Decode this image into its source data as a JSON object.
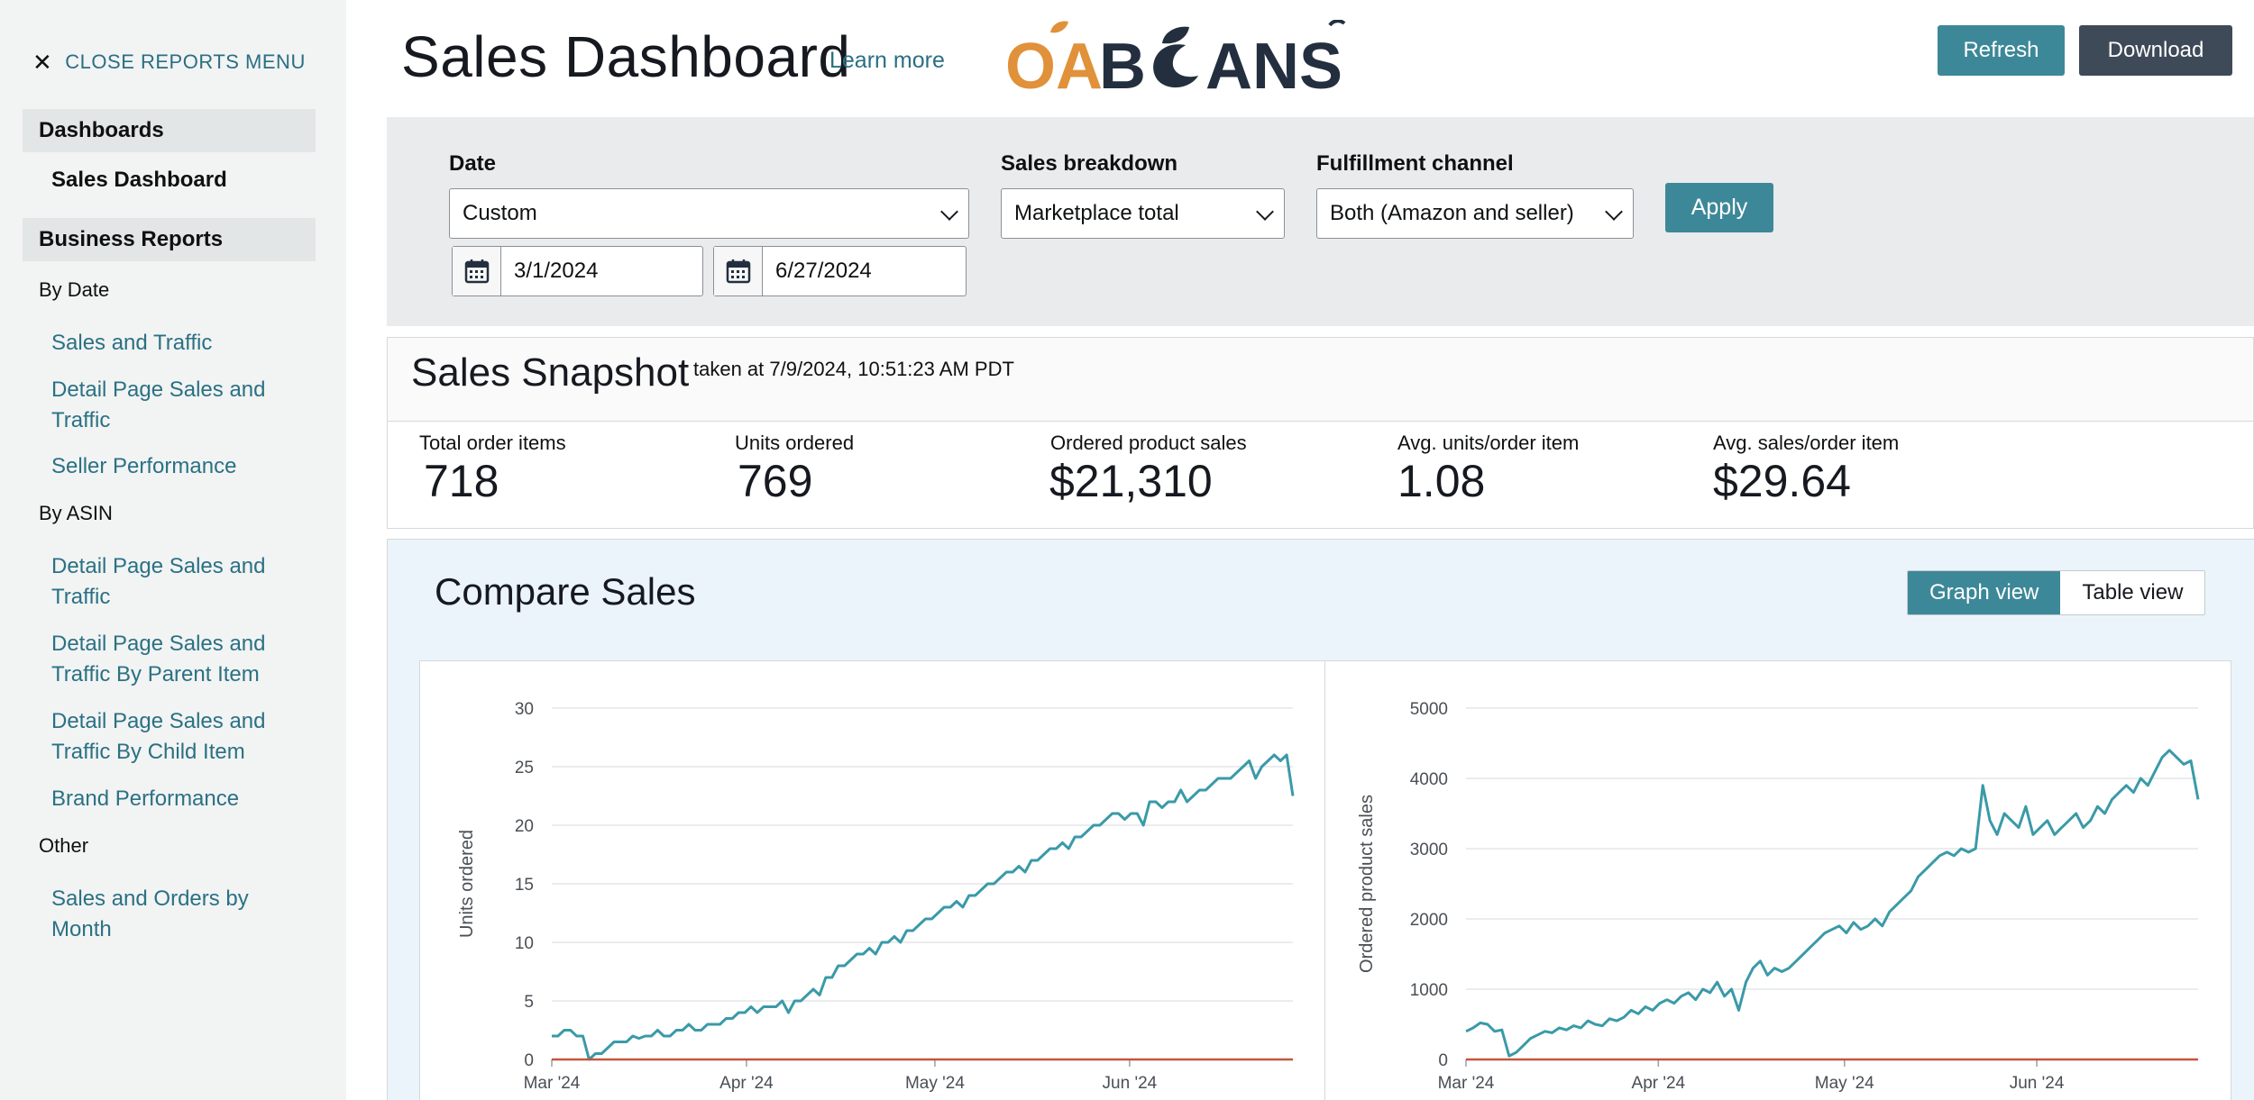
{
  "sidebar": {
    "close_label": "CLOSE REPORTS MENU",
    "sections": {
      "dashboards": {
        "title": "Dashboards",
        "active_item": "Sales Dashboard"
      },
      "business_reports": {
        "title": "Business Reports"
      }
    },
    "groups": {
      "by_date": "By Date",
      "by_asin": "By ASIN",
      "other": "Other"
    },
    "links": {
      "sales_and_traffic": "Sales and Traffic",
      "detail_page_sales_traffic_date": "Detail Page Sales and Traffic",
      "seller_performance": "Seller Performance",
      "detail_page_sales_traffic_asin": "Detail Page Sales and Traffic",
      "detail_page_parent": "Detail Page Sales and Traffic By Parent Item",
      "detail_page_child": "Detail Page Sales and Traffic By Child Item",
      "brand_performance": "Brand Performance",
      "sales_orders_month": "Sales and Orders by Month"
    }
  },
  "header": {
    "title": "Sales Dashboard",
    "learn_more": "Learn more",
    "logo": {
      "part1": "OA",
      "part2": "B",
      "part3": "ANS"
    },
    "refresh_label": "Refresh",
    "download_label": "Download"
  },
  "filters": {
    "date_label": "Date",
    "date_value": "Custom",
    "start_date": "3/1/2024",
    "end_date": "6/27/2024",
    "breakdown_label": "Sales breakdown",
    "breakdown_value": "Marketplace total",
    "fulfillment_label": "Fulfillment channel",
    "fulfillment_value": "Both (Amazon and seller)",
    "apply_label": "Apply"
  },
  "snapshot": {
    "title": "Sales Snapshot",
    "taken_at": "taken at 7/9/2024, 10:51:23 AM PDT",
    "metrics": [
      {
        "label": "Total order items",
        "value": "718"
      },
      {
        "label": "Units ordered",
        "value": "769"
      },
      {
        "label": "Ordered product sales",
        "value": "$21,310"
      },
      {
        "label": "Avg. units/order item",
        "value": "1.08"
      },
      {
        "label": "Avg. sales/order item",
        "value": "$29.64"
      }
    ]
  },
  "compare": {
    "title": "Compare Sales",
    "graph_view": "Graph view",
    "table_view": "Table view"
  },
  "colors": {
    "accent": "#3d8898",
    "line": "#3a9aa8",
    "baseline": "#c0583c",
    "logo_orange": "#e0913a",
    "logo_dark": "#232f3e"
  },
  "chart_data": [
    {
      "type": "line",
      "ylabel": "Units ordered",
      "x_ticks": [
        "Mar '24",
        "Apr '24",
        "May '24",
        "Jun '24"
      ],
      "x_tick_days": [
        0,
        31,
        61,
        92
      ],
      "x_range": [
        0,
        118
      ],
      "y_ticks": [
        0,
        5,
        10,
        15,
        20,
        25,
        30
      ],
      "ylim": [
        0,
        30
      ],
      "series": [
        {
          "values": [
            2,
            2,
            2.5,
            2.5,
            2,
            2,
            0,
            0.5,
            0.5,
            1,
            1.5,
            1.5,
            1.5,
            2,
            1.8,
            2,
            2,
            2.5,
            2,
            2,
            2.5,
            2.5,
            3,
            2.5,
            2.5,
            3,
            3,
            3,
            3.5,
            3.5,
            4,
            4,
            4.5,
            4,
            4.5,
            4.5,
            4.5,
            5,
            4,
            5,
            5,
            5.5,
            6,
            5.5,
            7,
            7,
            8,
            8,
            8.5,
            9,
            9,
            9.5,
            9,
            10,
            10,
            10.5,
            10,
            11,
            11,
            11.5,
            12,
            12,
            12.5,
            13,
            13,
            13.5,
            13,
            14,
            14,
            14.5,
            15,
            15,
            15.5,
            16,
            16,
            16.5,
            16,
            17,
            17,
            17.5,
            18,
            18,
            18.5,
            18,
            19,
            19,
            19.5,
            20,
            20,
            20.5,
            21,
            21,
            20.5,
            21,
            21,
            20,
            22,
            22,
            21.5,
            22,
            22,
            23,
            22,
            22.5,
            23,
            23,
            23.5,
            24,
            24,
            24,
            24.5,
            25,
            25.5,
            24,
            25,
            25.5,
            26,
            25.5,
            26,
            22.5
          ]
        },
        {
          "values": [
            0,
            0,
            0,
            0,
            0,
            0,
            0,
            0,
            0,
            0,
            0,
            0,
            0,
            0,
            0,
            0,
            0,
            0,
            0,
            0,
            0,
            0,
            0,
            0,
            0,
            0,
            0,
            0,
            0,
            0,
            0,
            0,
            0,
            0,
            0,
            0,
            0,
            0,
            0,
            0,
            0,
            0,
            0,
            0,
            0,
            0,
            0,
            0,
            0,
            0,
            0,
            0,
            0,
            0,
            0,
            0,
            0,
            0,
            0,
            0,
            0,
            0,
            0,
            0,
            0,
            0,
            0,
            0,
            0,
            0,
            0,
            0,
            0,
            0,
            0,
            0,
            0,
            0,
            0,
            0,
            0,
            0,
            0,
            0,
            0,
            0,
            0,
            0,
            0,
            0,
            0,
            0,
            0,
            0,
            0,
            0,
            0,
            0,
            0,
            0,
            0,
            0,
            0,
            0,
            0,
            0,
            0,
            0,
            0,
            0,
            0,
            0,
            0,
            0,
            0,
            0,
            0,
            0,
            0
          ]
        }
      ]
    },
    {
      "type": "line",
      "ylabel": "Ordered product sales",
      "x_ticks": [
        "Mar '24",
        "Apr '24",
        "May '24",
        "Jun '24"
      ],
      "x_tick_days": [
        0,
        31,
        61,
        92
      ],
      "x_range": [
        0,
        118
      ],
      "y_ticks": [
        0,
        1000,
        2000,
        3000,
        4000,
        5000
      ],
      "ylim": [
        0,
        5000
      ],
      "series": [
        {
          "values": [
            400,
            450,
            520,
            500,
            400,
            420,
            50,
            100,
            200,
            300,
            350,
            400,
            380,
            450,
            420,
            480,
            450,
            550,
            500,
            480,
            580,
            550,
            600,
            700,
            650,
            750,
            700,
            800,
            850,
            800,
            900,
            950,
            850,
            1000,
            950,
            1100,
            900,
            1000,
            700,
            1100,
            1300,
            1400,
            1200,
            1300,
            1250,
            1300,
            1400,
            1500,
            1600,
            1700,
            1800,
            1850,
            1900,
            1800,
            1950,
            1850,
            1900,
            2000,
            1900,
            2100,
            2200,
            2300,
            2400,
            2600,
            2700,
            2800,
            2900,
            2950,
            2900,
            3000,
            2950,
            3000,
            3900,
            3400,
            3200,
            3500,
            3400,
            3300,
            3600,
            3200,
            3300,
            3400,
            3200,
            3300,
            3400,
            3500,
            3300,
            3400,
            3600,
            3500,
            3700,
            3800,
            3900,
            3800,
            4000,
            3900,
            4100,
            4300,
            4400,
            4300,
            4200,
            4250,
            3700
          ]
        },
        {
          "values": [
            0,
            0,
            0,
            0,
            0,
            0,
            0,
            0,
            0,
            0,
            0,
            0,
            0,
            0,
            0,
            0,
            0,
            0,
            0,
            0,
            0,
            0,
            0,
            0,
            0,
            0,
            0,
            0,
            0,
            0,
            0,
            0,
            0,
            0,
            0,
            0,
            0,
            0,
            0,
            0,
            0,
            0,
            0,
            0,
            0,
            0,
            0,
            0,
            0,
            0,
            0,
            0,
            0,
            0,
            0,
            0,
            0,
            0,
            0,
            0,
            0,
            0,
            0,
            0,
            0,
            0,
            0,
            0,
            0,
            0,
            0,
            0,
            0,
            0,
            0,
            0,
            0,
            0,
            0,
            0,
            0,
            0,
            0,
            0,
            0,
            0,
            0,
            0,
            0,
            0,
            0,
            0,
            0,
            0,
            0,
            0,
            0,
            0,
            0,
            0,
            0,
            0,
            0
          ]
        }
      ]
    }
  ]
}
